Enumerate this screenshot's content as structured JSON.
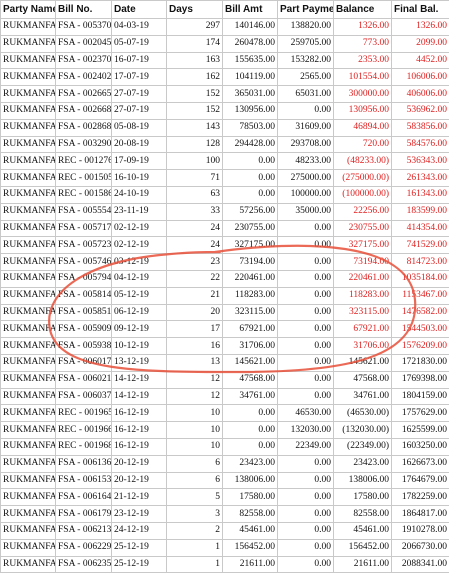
{
  "headers": [
    "Party Name",
    "Bill No.",
    "Date",
    "Days",
    "Bill Amt",
    "Part Payment",
    "Balance",
    "Final Bal."
  ],
  "rows": [
    [
      "RUKMANFA",
      "FSA - 005370",
      "04-03-19",
      "297",
      "140146.00",
      "138820.00",
      "1326.00",
      "1326.00"
    ],
    [
      "RUKMANFA",
      "FSA - 002045",
      "05-07-19",
      "174",
      "260478.00",
      "259705.00",
      "773.00",
      "2099.00"
    ],
    [
      "RUKMANFA",
      "FSA - 002370",
      "16-07-19",
      "163",
      "155635.00",
      "153282.00",
      "2353.00",
      "4452.00"
    ],
    [
      "RUKMANFA",
      "FSA - 002402",
      "17-07-19",
      "162",
      "104119.00",
      "2565.00",
      "101554.00",
      "106006.00"
    ],
    [
      "RUKMANFA",
      "FSA - 002665",
      "27-07-19",
      "152",
      "365031.00",
      "65031.00",
      "300000.00",
      "406006.00"
    ],
    [
      "RUKMANFA",
      "FSA - 002668",
      "27-07-19",
      "152",
      "130956.00",
      "0.00",
      "130956.00",
      "536962.00"
    ],
    [
      "RUKMANFA",
      "FSA - 002868",
      "05-08-19",
      "143",
      "78503.00",
      "31609.00",
      "46894.00",
      "583856.00"
    ],
    [
      "RUKMANFA",
      "FSA - 003290",
      "20-08-19",
      "128",
      "294428.00",
      "293708.00",
      "720.00",
      "584576.00"
    ],
    [
      "RUKMANFA",
      "REC - 001276",
      "17-09-19",
      "100",
      "0.00",
      "48233.00",
      "(48233.00)",
      "536343.00"
    ],
    [
      "RUKMANFA",
      "REC - 001505",
      "16-10-19",
      "71",
      "0.00",
      "275000.00",
      "(275000.00)",
      "261343.00"
    ],
    [
      "RUKMANFA",
      "REC - 001586",
      "24-10-19",
      "63",
      "0.00",
      "100000.00",
      "(100000.00)",
      "161343.00"
    ],
    [
      "RUKMANFA",
      "FSA - 005554",
      "23-11-19",
      "33",
      "57256.00",
      "35000.00",
      "22256.00",
      "183599.00"
    ],
    [
      "RUKMANFA",
      "FSA - 005717",
      "02-12-19",
      "24",
      "230755.00",
      "0.00",
      "230755.00",
      "414354.00"
    ],
    [
      "RUKMANFA",
      "FSA - 005723",
      "02-12-19",
      "24",
      "327175.00",
      "0.00",
      "327175.00",
      "741529.00"
    ],
    [
      "RUKMANFA",
      "FSA - 005746",
      "03-12-19",
      "23",
      "73194.00",
      "0.00",
      "73194.00",
      "814723.00"
    ],
    [
      "RUKMANFA",
      "FSA - 005794",
      "04-12-19",
      "22",
      "220461.00",
      "0.00",
      "220461.00",
      "1035184.00"
    ],
    [
      "RUKMANFA",
      "FSA - 005814",
      "05-12-19",
      "21",
      "118283.00",
      "0.00",
      "118283.00",
      "1153467.00"
    ],
    [
      "RUKMANFA",
      "FSA - 005851",
      "06-12-19",
      "20",
      "323115.00",
      "0.00",
      "323115.00",
      "1476582.00"
    ],
    [
      "RUKMANFA",
      "FSA - 005909",
      "09-12-19",
      "17",
      "67921.00",
      "0.00",
      "67921.00",
      "1544503.00"
    ],
    [
      "RUKMANFA",
      "FSA - 005938",
      "10-12-19",
      "16",
      "31706.00",
      "0.00",
      "31706.00",
      "1576209.00"
    ],
    [
      "RUKMANFA",
      "FSA - 006017",
      "13-12-19",
      "13",
      "145621.00",
      "0.00",
      "145621.00",
      "1721830.00"
    ],
    [
      "RUKMANFA",
      "FSA - 006021",
      "14-12-19",
      "12",
      "47568.00",
      "0.00",
      "47568.00",
      "1769398.00"
    ],
    [
      "RUKMANFA",
      "FSA - 006037",
      "14-12-19",
      "12",
      "34761.00",
      "0.00",
      "34761.00",
      "1804159.00"
    ],
    [
      "RUKMANFA",
      "REC - 001965",
      "16-12-19",
      "10",
      "0.00",
      "46530.00",
      "(46530.00)",
      "1757629.00"
    ],
    [
      "RUKMANFA",
      "REC - 001966",
      "16-12-19",
      "10",
      "0.00",
      "132030.00",
      "(132030.00)",
      "1625599.00"
    ],
    [
      "RUKMANFA",
      "REC - 001968",
      "16-12-19",
      "10",
      "0.00",
      "22349.00",
      "(22349.00)",
      "1603250.00"
    ],
    [
      "RUKMANFA",
      "FSA - 006136",
      "20-12-19",
      "6",
      "23423.00",
      "0.00",
      "23423.00",
      "1626673.00"
    ],
    [
      "RUKMANFA",
      "FSA - 006153",
      "20-12-19",
      "6",
      "138006.00",
      "0.00",
      "138006.00",
      "1764679.00"
    ],
    [
      "RUKMANFA",
      "FSA - 006164",
      "21-12-19",
      "5",
      "17580.00",
      "0.00",
      "17580.00",
      "1782259.00"
    ],
    [
      "RUKMANFA",
      "FSA - 006179",
      "23-12-19",
      "3",
      "82558.00",
      "0.00",
      "82558.00",
      "1864817.00"
    ],
    [
      "RUKMANFA",
      "FSA - 006213",
      "24-12-19",
      "2",
      "45461.00",
      "0.00",
      "45461.00",
      "1910278.00"
    ],
    [
      "RUKMANFA",
      "FSA - 006229",
      "25-12-19",
      "1",
      "156452.00",
      "0.00",
      "156452.00",
      "2066730.00"
    ],
    [
      "RUKMANFA",
      "FSA - 006235",
      "25-12-19",
      "1",
      "21611.00",
      "0.00",
      "21611.00",
      "2088341.00"
    ]
  ],
  "red_rows": [
    0,
    1,
    2,
    3,
    4,
    5,
    6,
    7,
    8,
    9,
    10,
    11,
    12,
    13,
    14,
    15,
    16,
    17,
    18,
    19
  ],
  "colors": {
    "red_text": "#e02020",
    "normal_text": "#111111",
    "grid": "#c9c9c9",
    "annotation": "#e8503a"
  }
}
